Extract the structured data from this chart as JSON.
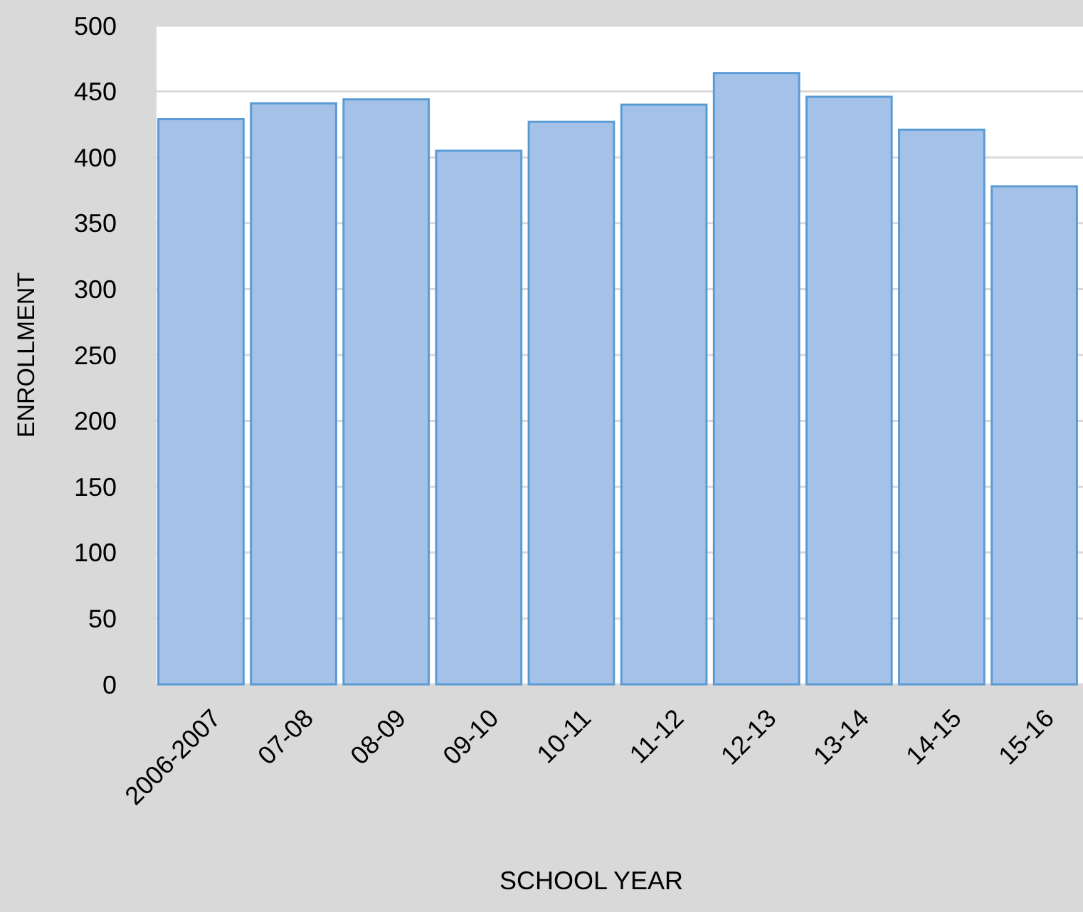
{
  "chart_data": {
    "type": "bar",
    "xlabel": "SCHOOL YEAR",
    "ylabel": "ENROLLMENT",
    "categories": [
      "2006-2007",
      "07-08",
      "08-09",
      "09-10",
      "10-11",
      "11-12",
      "12-13",
      "13-14",
      "14-15",
      "15-16"
    ],
    "values": [
      429,
      441,
      444,
      405,
      427,
      440,
      464,
      446,
      421,
      378
    ],
    "color": "#a4c2e8",
    "ylim": [
      0,
      500
    ],
    "yticks": [
      0,
      50,
      100,
      150,
      200,
      250,
      300,
      350,
      400,
      450,
      500
    ],
    "grid": "y"
  }
}
